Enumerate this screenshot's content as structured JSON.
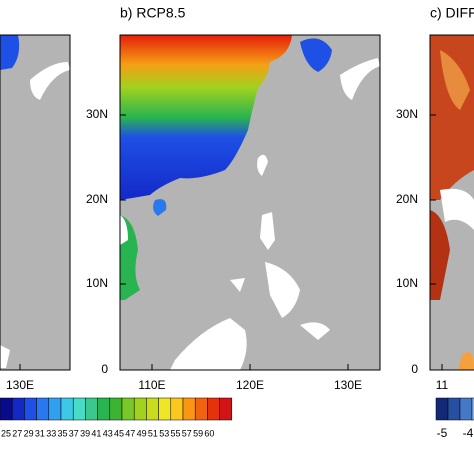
{
  "panels": [
    {
      "title": null,
      "xticks": [
        "130E"
      ],
      "yticks": []
    },
    {
      "title": "b) RCP8.5",
      "xticks": [
        "110E",
        "120E",
        "130E"
      ],
      "yticks": [
        "30N",
        "20N",
        "10N",
        "0"
      ]
    },
    {
      "title": "c) DIFF",
      "xticks": [
        "11"
      ],
      "yticks": [
        "30N",
        "20N",
        "10N",
        "0"
      ]
    }
  ],
  "colorbar_left": {
    "labels": [
      "25",
      "27",
      "29",
      "31",
      "33",
      "35",
      "37",
      "39",
      "41",
      "43",
      "45",
      "47",
      "49",
      "51",
      "53",
      "55",
      "57",
      "59",
      "60"
    ],
    "colors": [
      "#0a0a8c",
      "#1428c8",
      "#1e50e6",
      "#2878f0",
      "#32a0f0",
      "#3cc8e6",
      "#46dcc8",
      "#3cc88c",
      "#28b450",
      "#3cb432",
      "#78c828",
      "#a0d21e",
      "#c8dc1e",
      "#f0e628",
      "#fac81e",
      "#fa9614",
      "#f0640f",
      "#e6320a",
      "#d21414"
    ]
  },
  "colorbar_right": {
    "labels": [
      "-5",
      "-4"
    ],
    "colors": [
      "#142878",
      "#2850a0",
      "#4678c8",
      "#8cb4e6"
    ]
  }
}
